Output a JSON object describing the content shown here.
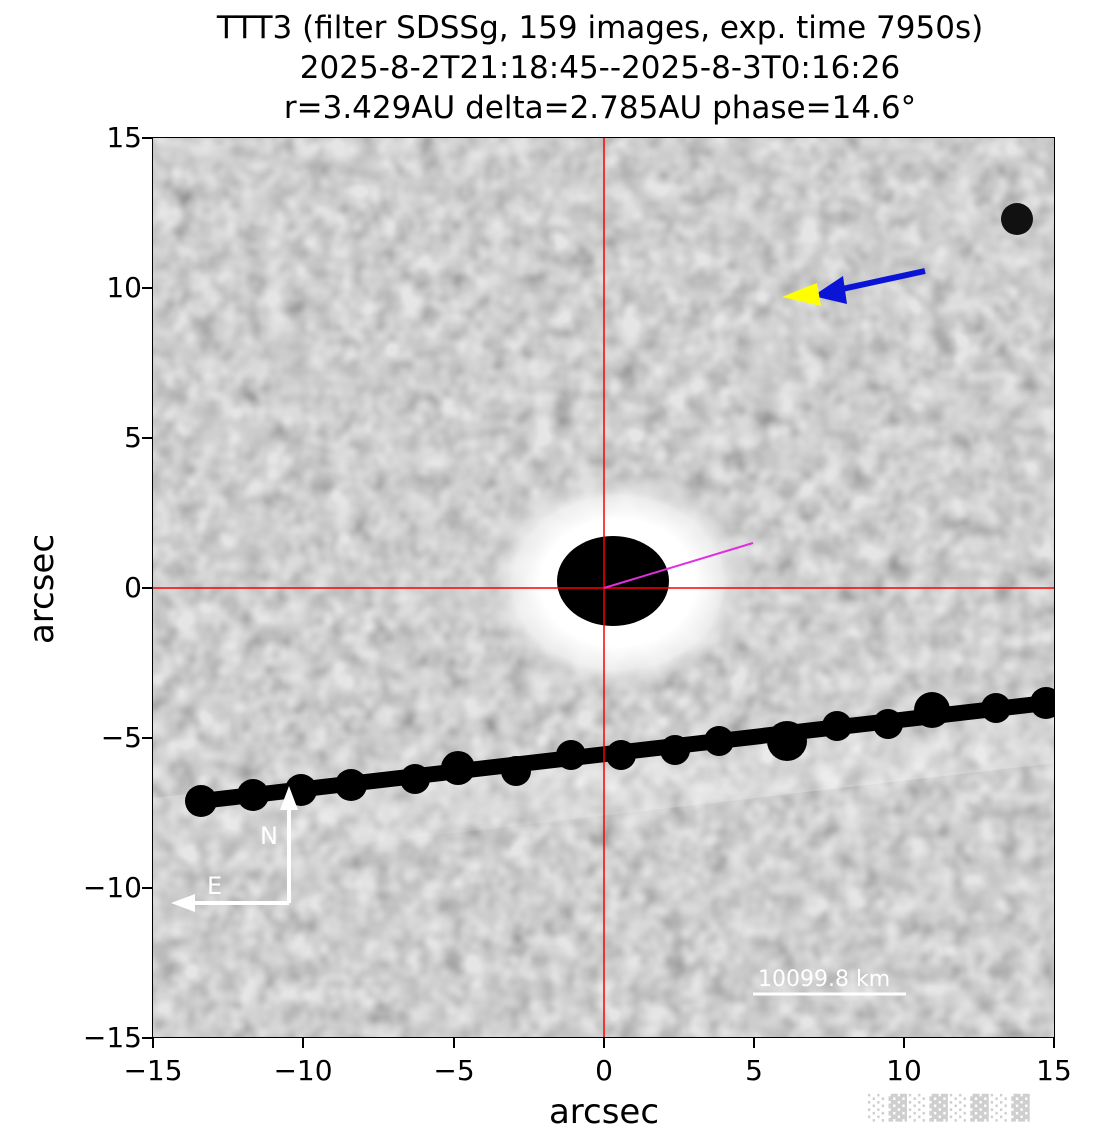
{
  "figure": {
    "title_lines": [
      "TTT3 (filter SDSSg, 159 images, exp. time 7950s)",
      "2025-8-2T21:18:45--2025-8-3T0:16:26",
      "r=3.429AU delta=2.785AU phase=14.6°"
    ],
    "xlabel": "arcsec",
    "ylabel": "arcsec",
    "x_range": [
      -15,
      15
    ],
    "y_range": [
      -15,
      15
    ],
    "x_ticks": [
      "−15",
      "−10",
      "−5",
      "0",
      "5",
      "10",
      "15"
    ],
    "y_ticks": [
      "15",
      "10",
      "5",
      "0",
      "−5",
      "−10",
      "−15"
    ],
    "crosshair_color": "#ff0000",
    "compass": {
      "north_label": "N",
      "east_label": "E",
      "color": "#ffffff"
    },
    "scale_bar": {
      "label": "10099.8 km",
      "color": "#ffffff"
    },
    "arrows": {
      "blue_color": "#0a14d6",
      "yellow_color": "#ffff00"
    },
    "vector_color": "#e02ee0",
    "watermark_text": "░▓░▓░▓░▓"
  }
}
